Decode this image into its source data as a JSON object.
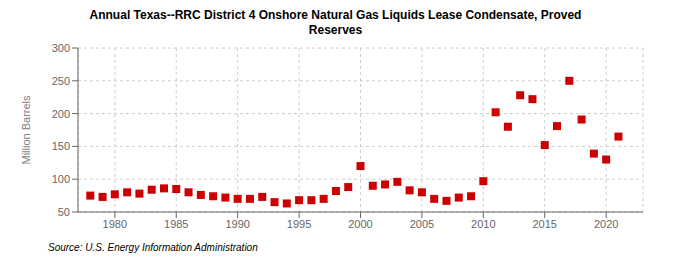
{
  "chart_data": {
    "type": "scatter",
    "title": "Annual Texas--RRC District 4 Onshore Natural Gas Liquids Lease Condensate, Proved\nReserves",
    "ylabel": "Million Barrels",
    "annotations": [
      "Source: U.S. Energy Information Administration"
    ],
    "x": [
      1978,
      1979,
      1980,
      1981,
      1982,
      1983,
      1984,
      1985,
      1986,
      1987,
      1988,
      1989,
      1990,
      1991,
      1992,
      1993,
      1994,
      1995,
      1996,
      1997,
      1998,
      1999,
      2000,
      2001,
      2002,
      2003,
      2004,
      2005,
      2006,
      2007,
      2008,
      2009,
      2010,
      2011,
      2012,
      2013,
      2014,
      2015,
      2016,
      2017,
      2018,
      2019,
      2020,
      2021
    ],
    "values": [
      75,
      73,
      77,
      80,
      78,
      84,
      86,
      85,
      80,
      76,
      74,
      72,
      70,
      70,
      73,
      65,
      63,
      68,
      68,
      70,
      82,
      88,
      120,
      90,
      92,
      96,
      83,
      80,
      70,
      67,
      72,
      74,
      97,
      202,
      180,
      228,
      222,
      152,
      181,
      250,
      191,
      139,
      130,
      165
    ],
    "color": "#cc0000",
    "marker": "square",
    "xlim": [
      1977,
      2023
    ],
    "xticks": [
      1980,
      1985,
      1990,
      1995,
      2000,
      2005,
      2010,
      2015,
      2020
    ],
    "ylim": [
      50,
      300
    ],
    "yticks": [
      50,
      100,
      150,
      200,
      250,
      300
    ],
    "grid": true
  }
}
